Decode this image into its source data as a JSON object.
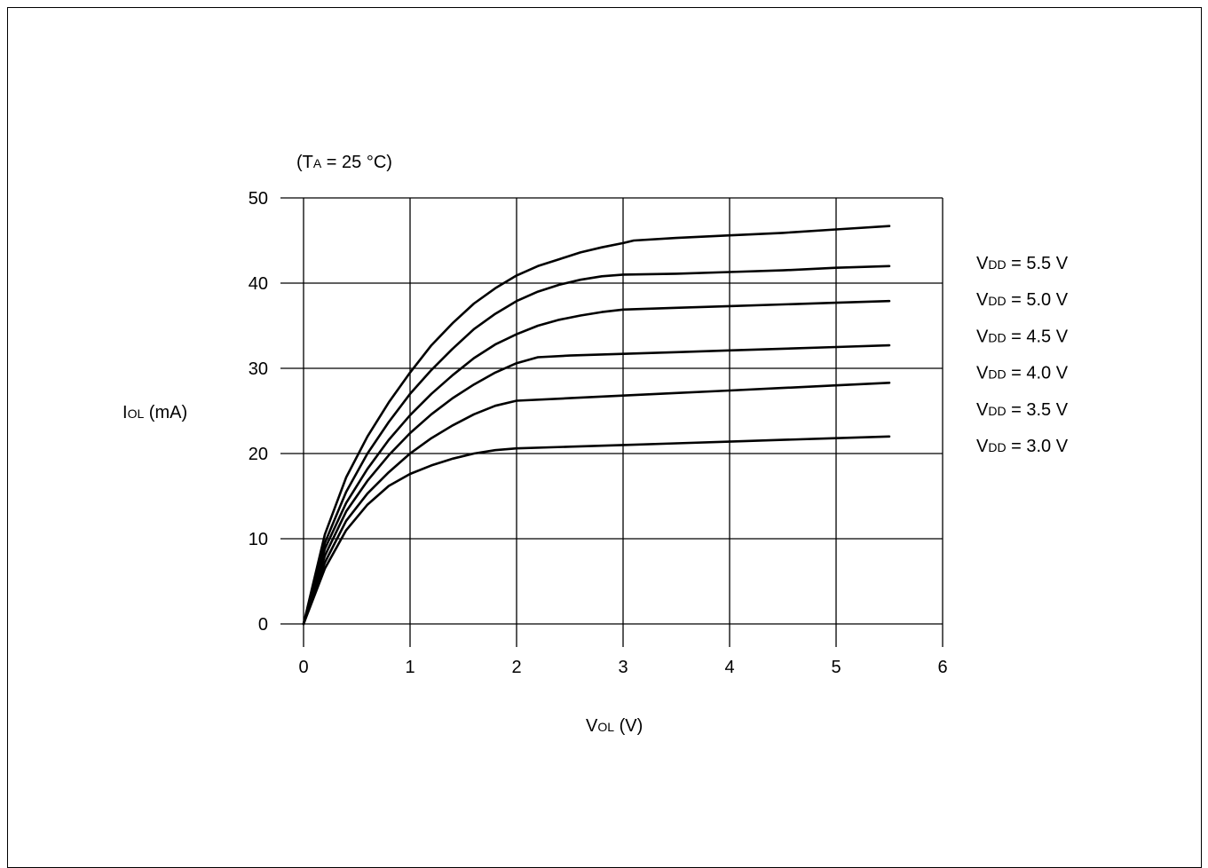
{
  "chart_data": {
    "type": "line",
    "annotation": {
      "open": "(T",
      "sub": "A",
      "rest": " = 25 °C)"
    },
    "ylabel": {
      "main": "I",
      "sub": "OL",
      "rest": " (mA)"
    },
    "xlabel": {
      "main": "V",
      "sub": "OL",
      "rest": " (V)"
    },
    "xlim": [
      0,
      6
    ],
    "ylim": [
      0,
      50
    ],
    "x_ticks": [
      0,
      1,
      2,
      3,
      4,
      5,
      6
    ],
    "y_ticks": [
      0,
      10,
      20,
      30,
      40,
      50
    ],
    "grid": true,
    "legend_position": "right",
    "series": [
      {
        "label": {
          "main": "V",
          "sub": "DD",
          "rest": " = 5.5 V"
        },
        "x": [
          0,
          0.2,
          0.4,
          0.6,
          0.8,
          1.0,
          1.2,
          1.4,
          1.6,
          1.8,
          2.0,
          2.2,
          2.4,
          2.6,
          2.8,
          3.0,
          3.1,
          3.5,
          4.0,
          4.5,
          5.0,
          5.5
        ],
        "y": [
          0,
          10.5,
          17.2,
          22.0,
          26.0,
          29.5,
          32.7,
          35.3,
          37.6,
          39.4,
          40.9,
          42.0,
          42.8,
          43.6,
          44.2,
          44.7,
          45.0,
          45.3,
          45.6,
          45.9,
          46.3,
          46.7
        ]
      },
      {
        "label": {
          "main": "V",
          "sub": "DD",
          "rest": " = 5.0 V"
        },
        "x": [
          0,
          0.2,
          0.4,
          0.6,
          0.8,
          1.0,
          1.2,
          1.4,
          1.6,
          1.8,
          2.0,
          2.2,
          2.4,
          2.6,
          2.8,
          3.0,
          3.5,
          4.0,
          4.5,
          5.0,
          5.5
        ],
        "y": [
          0,
          9.5,
          15.5,
          20.0,
          23.7,
          27.0,
          29.8,
          32.3,
          34.6,
          36.4,
          37.9,
          39.0,
          39.8,
          40.4,
          40.8,
          41.0,
          41.1,
          41.3,
          41.5,
          41.8,
          42.0
        ]
      },
      {
        "label": {
          "main": "V",
          "sub": "DD",
          "rest": " = 4.5 V"
        },
        "x": [
          0,
          0.2,
          0.4,
          0.6,
          0.8,
          1.0,
          1.2,
          1.4,
          1.6,
          1.8,
          2.0,
          2.2,
          2.4,
          2.6,
          2.8,
          3.0,
          3.5,
          4.0,
          4.5,
          5.0,
          5.5
        ],
        "y": [
          0,
          8.8,
          14.2,
          18.2,
          21.6,
          24.5,
          27.0,
          29.2,
          31.2,
          32.8,
          34.0,
          35.0,
          35.7,
          36.2,
          36.6,
          36.9,
          37.1,
          37.3,
          37.5,
          37.7,
          37.9
        ]
      },
      {
        "label": {
          "main": "V",
          "sub": "DD",
          "rest": " = 4.0 V"
        },
        "x": [
          0,
          0.2,
          0.4,
          0.6,
          0.8,
          1.0,
          1.2,
          1.4,
          1.6,
          1.8,
          2.0,
          2.2,
          2.5,
          3.0,
          3.5,
          4.0,
          4.5,
          5.0,
          5.5
        ],
        "y": [
          0,
          8.0,
          13.2,
          16.8,
          19.8,
          22.4,
          24.6,
          26.5,
          28.1,
          29.5,
          30.6,
          31.3,
          31.5,
          31.7,
          31.9,
          32.1,
          32.3,
          32.5,
          32.7
        ]
      },
      {
        "label": {
          "main": "V",
          "sub": "DD",
          "rest": " = 3.5 V"
        },
        "x": [
          0,
          0.2,
          0.4,
          0.6,
          0.8,
          1.0,
          1.2,
          1.4,
          1.6,
          1.8,
          2.0,
          2.5,
          3.0,
          3.5,
          4.0,
          4.5,
          5.0,
          5.5
        ],
        "y": [
          0,
          7.2,
          12.1,
          15.3,
          17.8,
          20.0,
          21.8,
          23.3,
          24.6,
          25.6,
          26.2,
          26.5,
          26.8,
          27.1,
          27.4,
          27.7,
          28.0,
          28.3
        ]
      },
      {
        "label": {
          "main": "V",
          "sub": "DD",
          "rest": " = 3.0 V"
        },
        "x": [
          0,
          0.2,
          0.4,
          0.6,
          0.8,
          1.0,
          1.2,
          1.4,
          1.6,
          1.8,
          2.0,
          2.5,
          3.0,
          3.5,
          4.0,
          4.5,
          5.0,
          5.5
        ],
        "y": [
          0,
          6.5,
          11.0,
          14.0,
          16.2,
          17.6,
          18.6,
          19.4,
          20.0,
          20.4,
          20.6,
          20.8,
          21.0,
          21.2,
          21.4,
          21.6,
          21.8,
          22.0
        ]
      }
    ]
  }
}
